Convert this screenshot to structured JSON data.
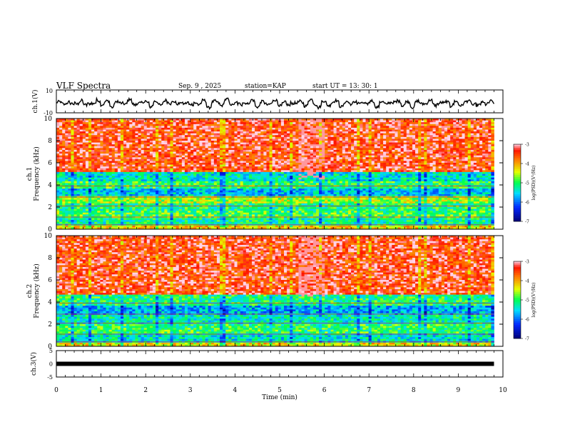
{
  "header": {
    "title": "VLF Spectra",
    "date": "Sep. 9 , 2025",
    "station": "station=KAP",
    "start": "start UT = 13: 30: 1"
  },
  "chart_data": [
    {
      "type": "line",
      "name": "ch1-waveform",
      "ylabel": "ch.1(V)",
      "ylim": [
        -10,
        10
      ],
      "y_ticks": [
        "10",
        "-10"
      ],
      "xlim": [
        0,
        10
      ],
      "samples": [
        0.2,
        -0.3,
        0.8,
        -1.5,
        0.4,
        1.8,
        -2.2,
        0.6,
        -1.1,
        2.5,
        -0.5,
        0.9,
        -3.1,
        1.2,
        -0.8,
        0.3,
        2.9,
        -1.6,
        0.7,
        -0.2,
        1.4,
        -2.7,
        0.5,
        -0.9,
        1.9,
        -0.4,
        2.2,
        -1.8,
        0.1,
        1.1,
        -2.4,
        0.8,
        -0.6,
        1.6,
        -3.2,
        0.9,
        0.3,
        -1.2,
        2.6,
        -0.7,
        0.4,
        -1.9,
        1.3,
        -0.3,
        2.1,
        -2.5,
        0.6,
        -1.0,
        0.2,
        1.7,
        -1.4,
        0.5,
        -2.8,
        1.0,
        -0.1,
        0.7,
        -1.6,
        2.3,
        -0.5,
        -3.4,
        0.8,
        -1.2,
        0.4,
        1.5,
        -2.1,
        0.3,
        -0.6,
        1.9,
        -1.3,
        0.9,
        -0.4,
        1.2,
        -2.6,
        0.6,
        -0.9,
        1.4,
        -0.2,
        2.4,
        -1.7,
        0.3,
        -3.0,
        1.1,
        -0.8,
        0.5,
        1.8,
        -1.5,
        0.2,
        -0.7,
        2.0,
        -2.3,
        0.7,
        -1.1,
        0.4,
        1.6,
        -0.6,
        -2.9,
        1.3,
        -0.3,
        0.8,
        -1.8
      ],
      "series_color": "#000000"
    },
    {
      "type": "heatmap",
      "name": "ch1-spectrogram",
      "ylabel": "ch.1\nFrequency (kHz)",
      "ylabel_lines": [
        "ch.1",
        "Frequency (kHz)"
      ],
      "xlim": [
        0,
        10
      ],
      "ylim": [
        0,
        10
      ],
      "y_ticks": [
        "0",
        "2",
        "4",
        "6",
        "8",
        "10"
      ],
      "colorbar": {
        "label": "log(PSD)(V²/Hz)",
        "ticks": [
          "-3",
          "-4",
          "-5",
          "-6",
          "-7"
        ],
        "range": [
          -7,
          -3
        ]
      },
      "band_intensity_by_khz": [
        {
          "from": 0.0,
          "to": 0.4,
          "level": -4.2
        },
        {
          "from": 0.4,
          "to": 1.0,
          "level": -5.2
        },
        {
          "from": 1.0,
          "to": 1.6,
          "level": -4.9
        },
        {
          "from": 1.6,
          "to": 2.4,
          "level": -5.1
        },
        {
          "from": 2.4,
          "to": 3.0,
          "level": -4.6
        },
        {
          "from": 3.0,
          "to": 3.6,
          "level": -5.6
        },
        {
          "from": 3.6,
          "to": 4.4,
          "level": -5.0
        },
        {
          "from": 4.4,
          "to": 5.2,
          "level": -5.4
        },
        {
          "from": 5.2,
          "to": 10.0,
          "level": -3.4
        }
      ]
    },
    {
      "type": "heatmap",
      "name": "ch2-spectrogram",
      "ylabel": "ch.2\nFrequency (kHz)",
      "ylabel_lines": [
        "ch.2",
        "Frequency (kHz)"
      ],
      "xlim": [
        0,
        10
      ],
      "ylim": [
        0,
        10
      ],
      "y_ticks": [
        "0",
        "2",
        "4",
        "6",
        "8",
        "10"
      ],
      "colorbar": {
        "label": "log(PSD)(V²/Hz)",
        "ticks": [
          "-3",
          "-4",
          "-5",
          "-6",
          "-7"
        ],
        "range": [
          -7,
          -3
        ]
      },
      "band_intensity_by_khz": [
        {
          "from": 0.0,
          "to": 0.4,
          "level": -4.3
        },
        {
          "from": 0.4,
          "to": 1.2,
          "level": -5.4
        },
        {
          "from": 1.2,
          "to": 2.0,
          "level": -5.0
        },
        {
          "from": 2.0,
          "to": 2.8,
          "level": -5.3
        },
        {
          "from": 2.8,
          "to": 3.6,
          "level": -5.7
        },
        {
          "from": 3.6,
          "to": 4.6,
          "level": -5.1
        },
        {
          "from": 4.6,
          "to": 10.0,
          "level": -3.4
        }
      ]
    },
    {
      "type": "line",
      "name": "ch3-waveform",
      "ylabel": "ch.3(V)",
      "ylim": [
        -5,
        5
      ],
      "y_ticks": [
        "5",
        "0",
        "-5"
      ],
      "xlim": [
        0,
        10
      ],
      "constant_value": 0,
      "series_color": "#000000"
    }
  ],
  "x_axis": {
    "label": "Time (min)",
    "ticks": [
      "0",
      "1",
      "2",
      "3",
      "4",
      "5",
      "6",
      "7",
      "8",
      "9",
      "10"
    ],
    "data_end_min": 9.8
  }
}
